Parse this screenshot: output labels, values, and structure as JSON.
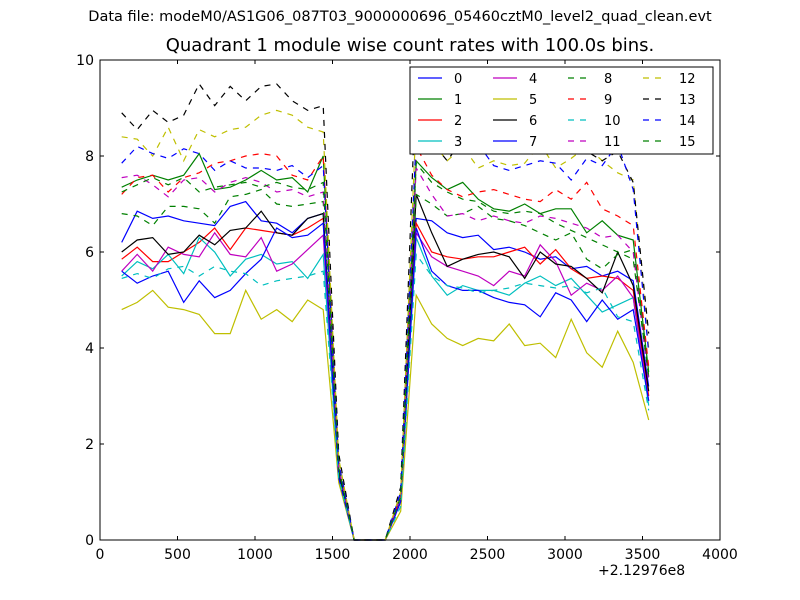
{
  "suptitle": "Data file: modeM0/AS1G06_087T03_9000000696_05460cztM0_level2_quad_clean.evt",
  "chart_data": {
    "type": "line",
    "title": "Quadrant 1 module wise count rates with 100.0s bins.",
    "xlabel": "",
    "ylabel": "",
    "xlim": [
      0,
      4000
    ],
    "ylim": [
      0,
      10
    ],
    "x_ticks": [
      0,
      500,
      1000,
      1500,
      2000,
      2500,
      3000,
      3500,
      4000
    ],
    "x_tick_labels": [
      "0",
      "500",
      "1000",
      "1500",
      "2000",
      "2500",
      "3000",
      "3500",
      "4000"
    ],
    "y_ticks": [
      0,
      2,
      4,
      6,
      8,
      10
    ],
    "y_tick_labels": [
      "0",
      "2",
      "4",
      "6",
      "8",
      "10"
    ],
    "x_offset_label": "+2.12976e8",
    "grid": false,
    "legend_position": "top-right",
    "legend_columns": 4,
    "x": [
      140,
      240,
      340,
      440,
      540,
      640,
      740,
      840,
      940,
      1040,
      1140,
      1240,
      1340,
      1440,
      1540,
      1640,
      1740,
      1840,
      1940,
      2040,
      2140,
      2240,
      2340,
      2440,
      2540,
      2640,
      2740,
      2840,
      2940,
      3040,
      3140,
      3240,
      3340,
      3440,
      3540
    ],
    "series": [
      {
        "name": "0",
        "color": "#0000ff",
        "dash": "solid",
        "values": [
          6.2,
          6.85,
          6.7,
          6.75,
          6.65,
          6.6,
          6.55,
          6.95,
          7.05,
          6.65,
          6.6,
          6.4,
          6.7,
          6.8,
          1.4,
          0,
          0,
          0,
          0.8,
          6.7,
          6.65,
          6.4,
          6.3,
          6.35,
          6.05,
          6.1,
          6.0,
          5.85,
          5.9,
          5.65,
          5.7,
          5.5,
          5.6,
          5.4,
          3.2
        ]
      },
      {
        "name": "1",
        "color": "#008000",
        "dash": "solid",
        "values": [
          7.35,
          7.5,
          7.6,
          7.5,
          7.6,
          8.05,
          7.3,
          7.35,
          7.5,
          7.7,
          7.5,
          7.55,
          7.25,
          8.0,
          1.5,
          0,
          0,
          0,
          0.9,
          7.9,
          7.55,
          7.3,
          7.45,
          7.1,
          6.9,
          6.85,
          7.0,
          6.8,
          6.9,
          6.9,
          6.4,
          6.65,
          6.35,
          6.25,
          3.5
        ]
      },
      {
        "name": "2",
        "color": "#ff0000",
        "dash": "solid",
        "values": [
          5.85,
          6.1,
          5.8,
          5.8,
          6.0,
          6.2,
          6.5,
          6.05,
          6.5,
          6.45,
          6.4,
          6.35,
          6.5,
          6.7,
          1.4,
          0,
          0,
          0,
          0.8,
          6.6,
          6.0,
          5.9,
          5.85,
          5.9,
          5.9,
          6.0,
          6.1,
          5.75,
          6.05,
          5.65,
          5.45,
          5.5,
          5.45,
          5.2,
          3.0
        ]
      },
      {
        "name": "3",
        "color": "#00bfbf",
        "dash": "solid",
        "values": [
          5.5,
          5.8,
          5.65,
          5.95,
          5.55,
          6.3,
          6.0,
          5.5,
          5.85,
          5.95,
          5.75,
          5.8,
          5.45,
          5.95,
          1.3,
          0,
          0,
          0,
          0.8,
          6.3,
          5.5,
          5.1,
          5.3,
          5.2,
          5.2,
          5.1,
          5.35,
          5.5,
          5.3,
          5.45,
          5.1,
          4.75,
          4.9,
          5.05,
          2.8
        ]
      },
      {
        "name": "4",
        "color": "#bf00bf",
        "dash": "solid",
        "values": [
          5.6,
          5.95,
          5.6,
          6.1,
          5.95,
          5.9,
          6.4,
          5.95,
          5.9,
          6.3,
          5.6,
          5.75,
          6.05,
          6.35,
          1.4,
          0,
          0,
          0,
          0.8,
          6.4,
          5.9,
          5.7,
          5.6,
          5.5,
          5.3,
          5.6,
          5.5,
          6.15,
          5.8,
          5.1,
          5.35,
          5.2,
          5.5,
          5.05,
          2.9
        ]
      },
      {
        "name": "5",
        "color": "#bfbf00",
        "dash": "solid",
        "values": [
          4.8,
          4.95,
          5.2,
          4.85,
          4.8,
          4.7,
          4.3,
          4.3,
          5.2,
          4.6,
          4.8,
          4.55,
          5.0,
          4.8,
          1.2,
          0,
          0,
          0,
          0.6,
          5.1,
          4.5,
          4.2,
          4.05,
          4.2,
          4.15,
          4.5,
          4.05,
          4.1,
          3.8,
          4.6,
          3.9,
          3.6,
          4.35,
          3.7,
          2.5
        ]
      },
      {
        "name": "6",
        "color": "#000000",
        "dash": "solid",
        "values": [
          6.0,
          6.25,
          6.3,
          5.95,
          6.0,
          6.35,
          6.15,
          6.45,
          6.5,
          6.85,
          6.4,
          6.35,
          6.7,
          6.8,
          1.4,
          0,
          0,
          0,
          0.9,
          7.2,
          6.4,
          5.7,
          5.85,
          5.95,
          6.0,
          5.9,
          5.45,
          6.0,
          5.75,
          5.7,
          5.45,
          5.15,
          6.0,
          5.3,
          3.1
        ]
      },
      {
        "name": "7",
        "color": "#0000ff",
        "dash": "solid",
        "values": [
          5.6,
          5.35,
          5.5,
          5.6,
          4.95,
          5.4,
          5.05,
          5.2,
          5.55,
          5.85,
          6.5,
          6.3,
          6.35,
          6.6,
          1.3,
          0,
          0,
          0,
          0.8,
          6.5,
          5.6,
          5.3,
          5.2,
          5.2,
          5.05,
          4.95,
          4.9,
          4.65,
          5.15,
          5.0,
          4.55,
          5.0,
          4.6,
          4.8,
          2.9
        ]
      },
      {
        "name": "8",
        "color": "#008000",
        "dash": "dashed",
        "values": [
          6.8,
          6.75,
          6.55,
          6.95,
          6.95,
          6.9,
          6.6,
          7.15,
          7.2,
          7.3,
          7.0,
          6.95,
          7.0,
          7.05,
          1.5,
          0,
          0,
          0,
          0.9,
          7.2,
          7.0,
          6.75,
          6.8,
          6.95,
          6.7,
          6.65,
          6.55,
          6.4,
          6.25,
          6.4,
          5.85,
          5.65,
          5.95,
          6.05,
          3.4
        ]
      },
      {
        "name": "9",
        "color": "#ff0000",
        "dash": "dashed",
        "values": [
          7.2,
          7.55,
          7.6,
          7.25,
          7.55,
          7.65,
          7.85,
          7.9,
          8.0,
          8.05,
          8.0,
          7.6,
          7.5,
          8.0,
          1.6,
          0,
          0,
          0,
          0.9,
          8.2,
          7.6,
          7.3,
          7.15,
          7.25,
          7.3,
          7.2,
          7.1,
          7.05,
          7.3,
          7.1,
          7.45,
          6.9,
          6.75,
          6.55,
          3.6
        ]
      },
      {
        "name": "10",
        "color": "#00bfbf",
        "dash": "dashed",
        "values": [
          5.45,
          5.55,
          5.45,
          5.65,
          5.7,
          5.5,
          5.7,
          5.6,
          5.55,
          5.3,
          5.4,
          5.45,
          5.5,
          5.6,
          1.3,
          0,
          0,
          0,
          0.7,
          5.95,
          5.5,
          5.3,
          5.25,
          5.15,
          5.2,
          5.25,
          5.35,
          5.3,
          5.25,
          5.3,
          5.15,
          5.25,
          4.65,
          4.55,
          2.7
        ]
      },
      {
        "name": "11",
        "color": "#bf00bf",
        "dash": "dashed",
        "values": [
          7.55,
          7.6,
          7.4,
          7.15,
          7.5,
          7.55,
          7.25,
          7.45,
          7.55,
          7.45,
          7.25,
          7.3,
          7.15,
          7.25,
          1.5,
          0,
          0,
          0,
          0.9,
          7.75,
          7.2,
          6.75,
          6.8,
          6.65,
          6.75,
          6.65,
          6.6,
          6.75,
          6.7,
          6.6,
          6.5,
          6.3,
          6.35,
          6.0,
          3.3
        ]
      },
      {
        "name": "12",
        "color": "#bfbf00",
        "dash": "dashed",
        "values": [
          8.4,
          8.35,
          8.0,
          8.6,
          7.9,
          8.55,
          8.4,
          8.55,
          8.6,
          8.85,
          8.95,
          8.85,
          8.6,
          8.5,
          1.7,
          0,
          0,
          0,
          1.0,
          8.8,
          8.3,
          7.9,
          8.2,
          7.75,
          7.9,
          7.8,
          7.85,
          8.25,
          7.75,
          7.95,
          8.2,
          7.9,
          7.65,
          7.5,
          4.0
        ]
      },
      {
        "name": "13",
        "color": "#000000",
        "dash": "dashed",
        "values": [
          8.9,
          8.55,
          8.95,
          8.7,
          8.85,
          9.5,
          9.05,
          9.45,
          9.15,
          9.45,
          9.5,
          9.15,
          8.95,
          9.05,
          1.8,
          0,
          0,
          0,
          1.1,
          9.7,
          8.3,
          7.9,
          8.35,
          8.1,
          8.1,
          8.35,
          8.25,
          8.15,
          8.3,
          8.4,
          8.1,
          7.9,
          8.1,
          7.45,
          4.3
        ]
      },
      {
        "name": "14",
        "color": "#0000ff",
        "dash": "dashed",
        "values": [
          7.85,
          8.2,
          8.05,
          7.95,
          8.15,
          8.05,
          7.7,
          7.9,
          7.75,
          7.75,
          7.7,
          7.8,
          7.55,
          7.8,
          1.6,
          0,
          0,
          0,
          1.0,
          8.4,
          8.2,
          8.1,
          8.15,
          8.25,
          7.8,
          7.7,
          7.8,
          7.9,
          7.85,
          7.5,
          7.95,
          7.8,
          8.25,
          7.3,
          3.9
        ]
      },
      {
        "name": "15",
        "color": "#008000",
        "dash": "dashed",
        "values": [
          7.25,
          7.4,
          7.55,
          7.4,
          7.55,
          7.25,
          7.35,
          7.4,
          7.45,
          7.35,
          7.45,
          7.35,
          7.3,
          7.45,
          1.5,
          0,
          0,
          0,
          0.9,
          7.85,
          7.45,
          7.25,
          7.1,
          7.05,
          6.85,
          6.8,
          6.85,
          6.8,
          6.6,
          6.45,
          6.3,
          6.15,
          6.0,
          5.85,
          3.4
        ]
      }
    ]
  }
}
